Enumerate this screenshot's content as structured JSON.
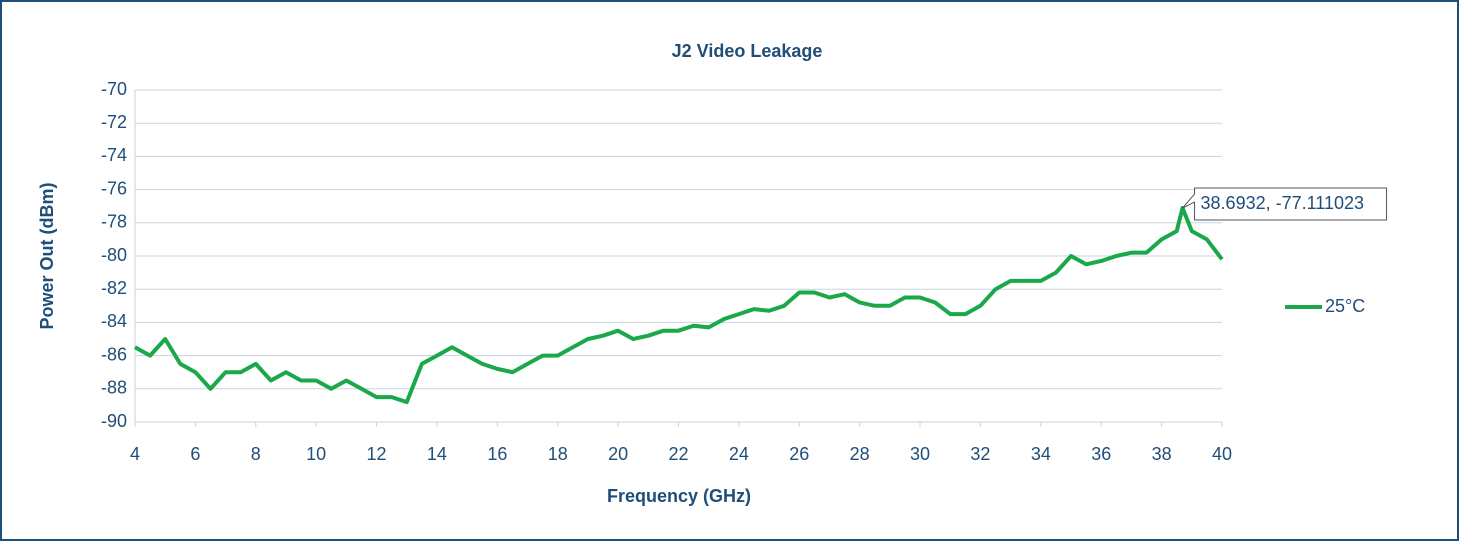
{
  "chart_data": {
    "type": "line",
    "title": "J2 Video Leakage",
    "xlabel": "Frequency (GHz)",
    "ylabel": "Power Out (dBm)",
    "x": [
      4,
      4.5,
      5,
      5.5,
      6,
      6.5,
      7,
      7.5,
      8,
      8.5,
      9,
      9.5,
      10,
      10.5,
      11,
      11.5,
      12,
      12.5,
      13,
      13.5,
      14,
      14.5,
      15,
      15.5,
      16,
      16.5,
      17,
      17.5,
      18,
      18.5,
      19,
      19.5,
      20,
      20.5,
      21,
      21.5,
      22,
      22.5,
      23,
      23.5,
      24,
      24.5,
      25,
      25.5,
      26,
      26.5,
      27,
      27.5,
      28,
      28.5,
      29,
      29.5,
      30,
      30.5,
      31,
      31.5,
      32,
      32.5,
      33,
      33.5,
      34,
      34.5,
      35,
      35.5,
      36,
      36.5,
      37,
      37.5,
      38,
      38.5,
      38.6932,
      39,
      39.5,
      40
    ],
    "series": [
      {
        "name": "25°C",
        "color": "#1aa84a",
        "values": [
          -85.5,
          -86,
          -85,
          -86.5,
          -87,
          -88,
          -87,
          -87,
          -86.5,
          -87.5,
          -87,
          -87.5,
          -87.5,
          -88,
          -87.5,
          -88,
          -88.5,
          -88.5,
          -88.8,
          -86.5,
          -86,
          -85.5,
          -86,
          -86.5,
          -86.8,
          -87,
          -86.5,
          -86,
          -86,
          -85.5,
          -85,
          -84.8,
          -84.5,
          -85,
          -84.8,
          -84.5,
          -84.5,
          -84.2,
          -84.3,
          -83.8,
          -83.5,
          -83.2,
          -83.3,
          -83,
          -82.2,
          -82.2,
          -82.5,
          -82.3,
          -82.8,
          -83,
          -83,
          -82.5,
          -82.5,
          -82.8,
          -83.5,
          -83.5,
          -83,
          -82,
          -81.5,
          -81.5,
          -81.5,
          -81,
          -80,
          -80.5,
          -80.3,
          -80,
          -79.8,
          -79.8,
          -79,
          -78.5,
          -77.111023,
          -78.5,
          -79,
          -80.2
        ]
      }
    ],
    "annotations": [
      {
        "text": "38.6932, -77.111023",
        "x": 38.6932,
        "y": -77.111023
      }
    ],
    "xlim": [
      4,
      40
    ],
    "xticks": [
      4,
      6,
      8,
      10,
      12,
      14,
      16,
      18,
      20,
      22,
      24,
      26,
      28,
      30,
      32,
      34,
      36,
      38,
      40
    ],
    "ylim": [
      -90,
      -70
    ],
    "yticks": [
      -90,
      -88,
      -86,
      -84,
      -82,
      -80,
      -78,
      -76,
      -74,
      -72,
      -70
    ],
    "grid": true,
    "legend": "right"
  }
}
